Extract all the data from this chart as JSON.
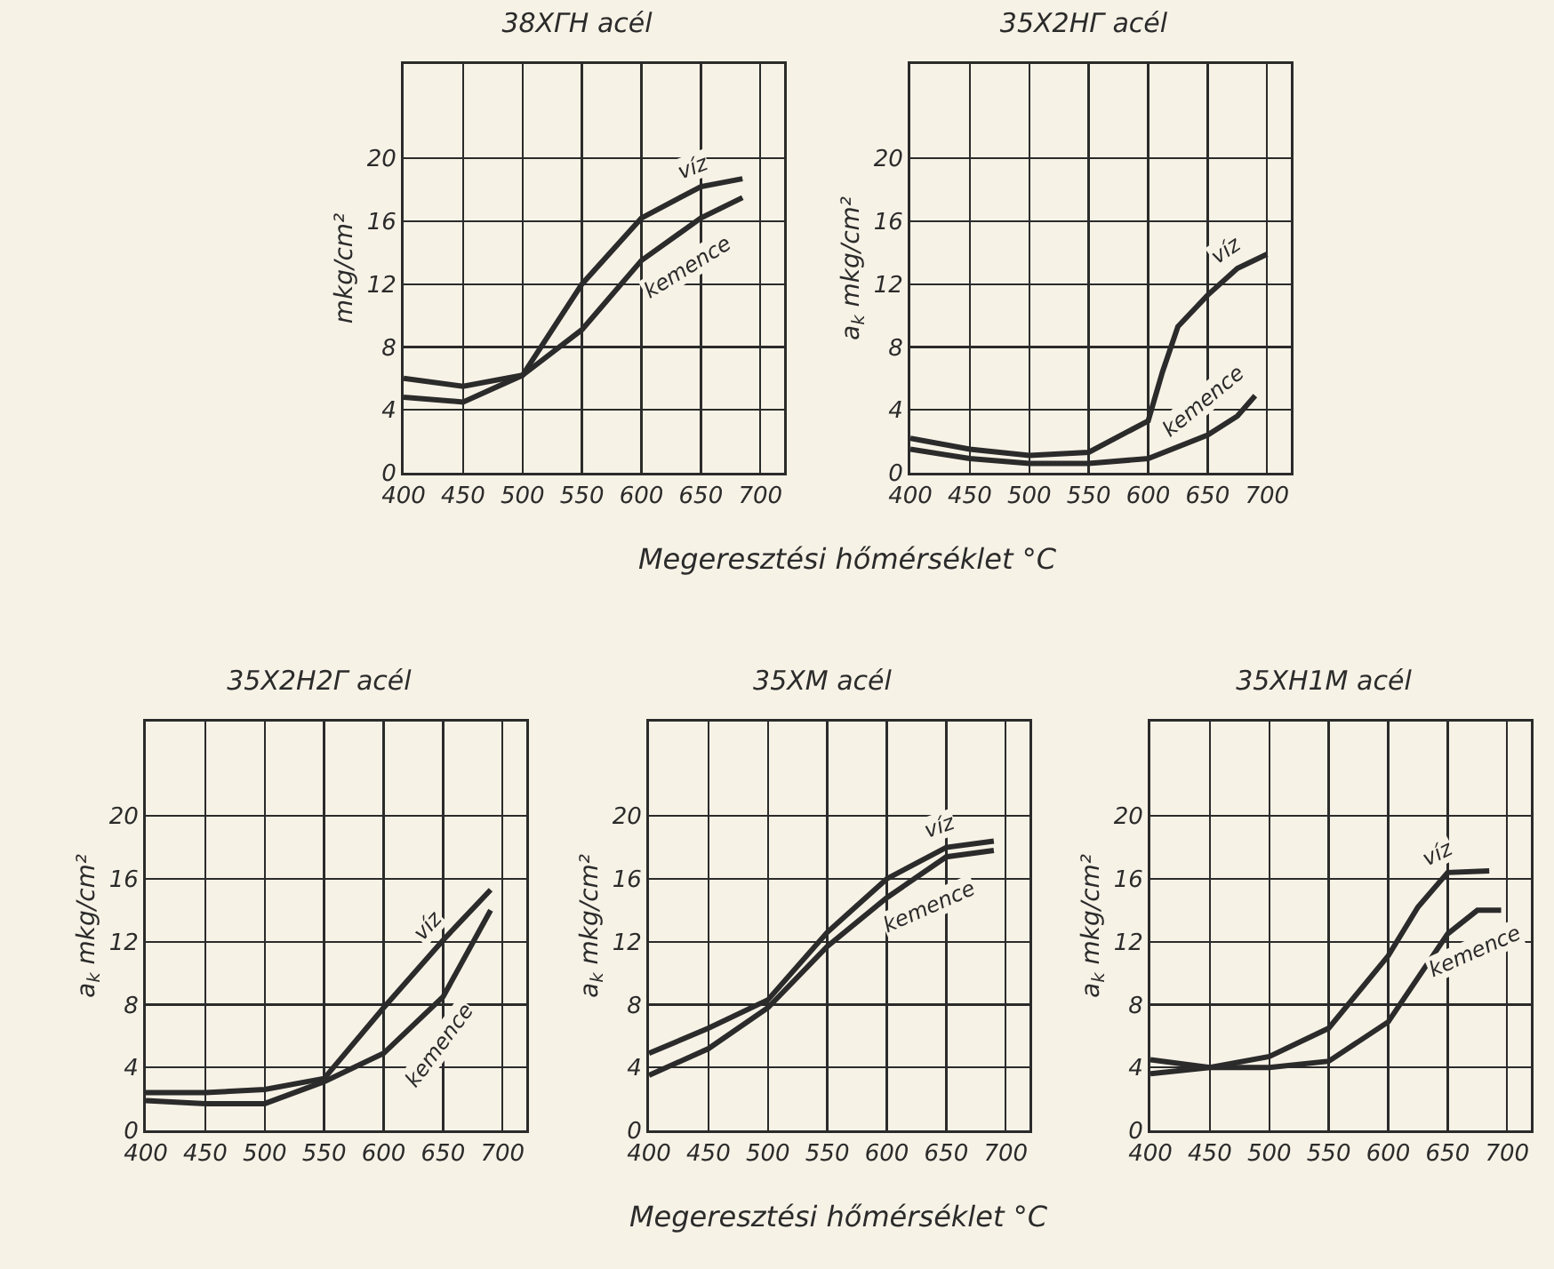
{
  "chart_data": [
    {
      "type": "line",
      "title": "38XГH acél",
      "ylabel": "mkg/cm²",
      "xlabel": "Megeresztési hőmérséklet °C",
      "xlim": [
        400,
        720
      ],
      "ylim": [
        0,
        26
      ],
      "xticks": [
        400,
        450,
        500,
        550,
        600,
        650,
        700
      ],
      "yticks": [
        0,
        4,
        8,
        12,
        16,
        20
      ],
      "grid": true,
      "line_style": "solid",
      "series": [
        {
          "name": "víz",
          "color": "#2b2b2b",
          "x": [
            400,
            450,
            500,
            550,
            600,
            650,
            685
          ],
          "values": [
            4.8,
            4.5,
            6.2,
            12,
            16.2,
            18.2,
            18.7
          ]
        },
        {
          "name": "kemence",
          "color": "#2b2b2b",
          "x": [
            400,
            450,
            500,
            550,
            600,
            650,
            685
          ],
          "values": [
            6,
            5.5,
            6.2,
            9.1,
            13.5,
            16.2,
            17.5
          ]
        }
      ]
    },
    {
      "type": "line",
      "title": "35X2HГ acél",
      "ylabel": "a$_{k}$ mkg/cm²",
      "xlim": [
        400,
        720
      ],
      "ylim": [
        0,
        26
      ],
      "xticks": [
        400,
        450,
        500,
        550,
        600,
        650,
        700
      ],
      "yticks": [
        0,
        4,
        8,
        12,
        16,
        20
      ],
      "grid": true,
      "line_style": "solid",
      "series": [
        {
          "name": "víz",
          "color": "#2b2b2b",
          "x": [
            400,
            450,
            500,
            550,
            600,
            612,
            625,
            650,
            675,
            700
          ],
          "values": [
            2.2,
            1.5,
            1.1,
            1.3,
            3.3,
            6.4,
            9.3,
            11.3,
            13,
            13.9
          ]
        },
        {
          "name": "kemence",
          "color": "#2b2b2b",
          "x": [
            400,
            450,
            500,
            550,
            600,
            650,
            675,
            690
          ],
          "values": [
            1.5,
            0.9,
            0.6,
            0.6,
            0.9,
            2.4,
            3.6,
            4.9
          ]
        }
      ]
    },
    {
      "type": "line",
      "title": "35X2H2Г acél",
      "ylabel": "a$_{k}$ mkg/cm²",
      "xlim": [
        400,
        720
      ],
      "ylim": [
        0,
        26
      ],
      "xticks": [
        400,
        450,
        500,
        550,
        600,
        650,
        700
      ],
      "yticks": [
        0,
        4,
        8,
        12,
        16,
        20
      ],
      "grid": true,
      "line_style": "solid",
      "series": [
        {
          "name": "víz",
          "color": "#2b2b2b",
          "x": [
            400,
            450,
            500,
            550,
            600,
            650,
            690
          ],
          "values": [
            2.4,
            2.4,
            2.6,
            3.3,
            7.8,
            12.1,
            15.3
          ]
        },
        {
          "name": "kemence",
          "color": "#2b2b2b",
          "x": [
            400,
            450,
            500,
            550,
            600,
            650,
            690
          ],
          "values": [
            1.9,
            1.7,
            1.7,
            3.1,
            4.9,
            8.5,
            14
          ]
        }
      ]
    },
    {
      "type": "line",
      "title": "35XM acél",
      "ylabel": "a$_{k}$ mkg/cm²",
      "xlabel": "Megeresztési hőmérséklet °C",
      "xlim": [
        400,
        720
      ],
      "ylim": [
        0,
        26
      ],
      "xticks": [
        400,
        450,
        500,
        550,
        600,
        650,
        700
      ],
      "yticks": [
        0,
        4,
        8,
        12,
        16,
        20
      ],
      "grid": true,
      "line_style": "solid",
      "series": [
        {
          "name": "víz",
          "color": "#2b2b2b",
          "x": [
            400,
            450,
            500,
            550,
            600,
            650,
            690
          ],
          "values": [
            4.9,
            6.5,
            8.3,
            12.6,
            16,
            18,
            18.4
          ]
        },
        {
          "name": "kemence",
          "color": "#2b2b2b",
          "x": [
            400,
            450,
            500,
            550,
            600,
            650,
            690
          ],
          "values": [
            3.5,
            5.2,
            7.8,
            11.7,
            14.8,
            17.4,
            17.8
          ]
        }
      ]
    },
    {
      "type": "line",
      "title": "35XH1M acél",
      "ylabel": "a$_{k}$ mkg/cm²",
      "xlim": [
        400,
        720
      ],
      "ylim": [
        0,
        26
      ],
      "xticks": [
        400,
        450,
        500,
        550,
        600,
        650,
        700
      ],
      "yticks": [
        0,
        4,
        8,
        12,
        16,
        20
      ],
      "grid": true,
      "line_style": "solid",
      "series": [
        {
          "name": "víz",
          "color": "#2b2b2b",
          "x": [
            400,
            450,
            500,
            550,
            600,
            625,
            650,
            685
          ],
          "values": [
            4.5,
            4,
            4.7,
            6.5,
            11.1,
            14.2,
            16.4,
            16.5
          ]
        },
        {
          "name": "kemence",
          "color": "#2b2b2b",
          "x": [
            400,
            450,
            500,
            550,
            600,
            650,
            675,
            695
          ],
          "values": [
            3.6,
            4,
            4,
            4.4,
            6.9,
            12.5,
            14,
            14
          ]
        }
      ]
    }
  ]
}
